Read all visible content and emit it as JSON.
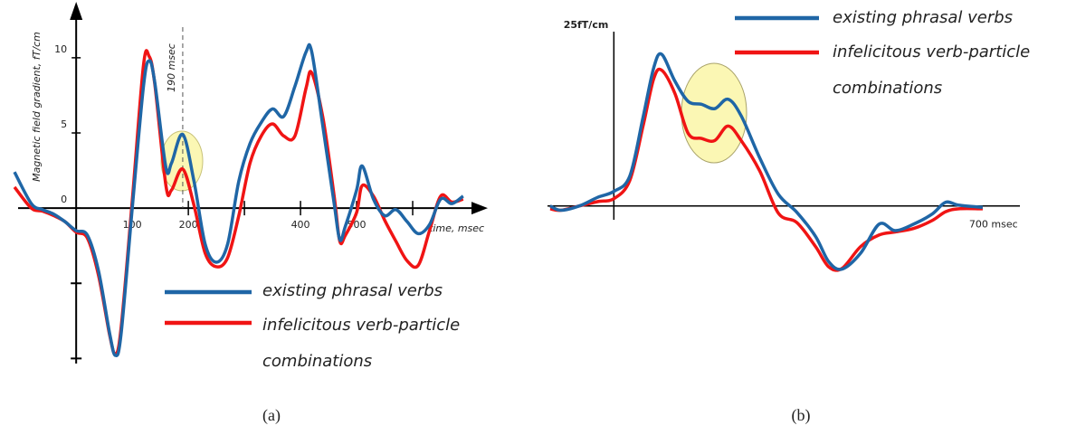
{
  "chart_data": [
    {
      "type": "line",
      "y_label": "Magnetic field gradient, fT/cm",
      "x_label": "time, msec",
      "annotation": "190 msec",
      "marker_x": 190,
      "caption": "(a)",
      "x": [
        -110,
        -80,
        -60,
        -40,
        -20,
        0,
        20,
        40,
        60,
        70,
        80,
        100,
        120,
        130,
        140,
        160,
        170,
        190,
        210,
        230,
        250,
        270,
        290,
        310,
        330,
        350,
        370,
        390,
        410,
        420,
        440,
        460,
        470,
        480,
        500,
        510,
        530,
        550,
        570,
        590,
        610,
        630,
        650,
        670,
        690
      ],
      "series": [
        {
          "name": "existing phrasal verbs",
          "color": "#1f66a6",
          "values": [
            2.4,
            0.3,
            -0.1,
            -0.4,
            -0.9,
            -1.5,
            -1.8,
            -4.2,
            -8.4,
            -9.8,
            -8.4,
            0,
            8.1,
            9.8,
            8.4,
            2.7,
            3,
            4.9,
            1.8,
            -2.4,
            -3.6,
            -2.4,
            1.8,
            4.3,
            5.7,
            6.6,
            6.1,
            8.1,
            10.4,
            10.4,
            5.4,
            0.3,
            -2.1,
            -1.2,
            1.2,
            2.8,
            0.6,
            -0.5,
            -0.1,
            -0.9,
            -1.7,
            -1.1,
            0.6,
            0.3,
            0.8
          ]
        },
        {
          "name": "infelicitous verb-particle combinations",
          "color": "#f01414",
          "values": [
            1.4,
            0,
            -0.2,
            -0.5,
            -0.9,
            -1.6,
            -2,
            -4.5,
            -8.5,
            -9.7,
            -8,
            0.5,
            9.5,
            10.1,
            8.3,
            1.5,
            1.2,
            2.6,
            0.2,
            -3,
            -3.9,
            -3.3,
            -0.5,
            3,
            4.8,
            5.6,
            4.8,
            4.8,
            8,
            9,
            6,
            0.8,
            -2.2,
            -1.8,
            -0.3,
            1.5,
            0.8,
            -0.8,
            -2.2,
            -3.5,
            -3.8,
            -1.5,
            0.8,
            0.4,
            0.6
          ]
        }
      ],
      "xlim": [
        -110,
        700
      ],
      "ylim": [
        -11,
        13
      ],
      "xticks": [
        100,
        200,
        400,
        500
      ],
      "xticks_unlabeled": [
        300,
        600
      ],
      "yticks": [
        0,
        5,
        10
      ],
      "yticks_unlabeled": [
        -10,
        -5
      ]
    },
    {
      "type": "line",
      "caption": "(b)",
      "x": [
        -120,
        -100,
        -65,
        -30,
        0,
        30,
        55,
        75,
        90,
        115,
        140,
        165,
        190,
        215,
        240,
        275,
        310,
        345,
        380,
        405,
        430,
        465,
        500,
        530,
        565,
        600,
        625,
        650,
        695
      ],
      "series": [
        {
          "name": "existing phrasal verbs",
          "color": "#1f66a6",
          "values": [
            0,
            -0.6,
            0,
            1.2,
            2,
            4.1,
            12.2,
            19,
            20.9,
            17.2,
            14.4,
            14,
            13.4,
            14.7,
            12.4,
            6.6,
            1.6,
            -0.9,
            -4.2,
            -7.7,
            -8.7,
            -6.5,
            -2.5,
            -3.4,
            -2.5,
            -1.1,
            0.5,
            0.1,
            -0.2
          ]
        },
        {
          "name": "infelicitous verb-particle combinations",
          "color": "#f01414",
          "values": [
            -0.4,
            -0.6,
            0,
            0.6,
            1,
            3.5,
            11,
            17.5,
            18.7,
            15.5,
            10,
            9.3,
            9,
            11,
            9,
            4.8,
            -1,
            -2.3,
            -5.6,
            -8.4,
            -8.6,
            -5.6,
            -4,
            -3.6,
            -3.1,
            -2,
            -0.8,
            -0.4,
            -0.4
          ]
        }
      ],
      "xlim": [
        -125,
        765
      ],
      "ylim": [
        -12,
        27
      ],
      "xticks": [
        {
          "value": 700,
          "label": "700 msec"
        }
      ],
      "yticks": [
        {
          "value": 25,
          "label": "25fT/cm"
        }
      ]
    }
  ]
}
